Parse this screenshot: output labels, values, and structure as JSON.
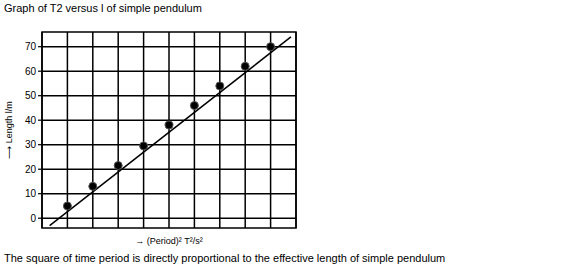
{
  "chart_data": {
    "type": "scatter",
    "title": "Graph of T2 versus l of simple pendulum",
    "x_label": "→ (Period)² T²/s²",
    "y_label": "⟶ Length l/m",
    "caption": "The square of time period is directly proportional to the effective length of simple pendulum",
    "xlim": [
      0,
      10
    ],
    "ylim": [
      -4,
      76
    ],
    "xticks": [
      0,
      1,
      2,
      3,
      4,
      5,
      6,
      7,
      8,
      9,
      10
    ],
    "yticks": [
      0,
      10,
      20,
      30,
      40,
      50,
      60,
      70
    ],
    "tick_labels": "y",
    "grid": true,
    "series": [
      {
        "type": "scatter",
        "color": "#000000",
        "marker": "circle",
        "x": [
          1,
          2,
          3,
          4,
          5,
          6,
          7,
          8,
          9
        ],
        "values": [
          5,
          13,
          21.5,
          29.5,
          38,
          46,
          54,
          62,
          70
        ]
      },
      {
        "type": "line",
        "color": "#000000",
        "line_style": "solid",
        "x": [
          0.3,
          9.8
        ],
        "values": [
          -3,
          74
        ]
      }
    ]
  }
}
